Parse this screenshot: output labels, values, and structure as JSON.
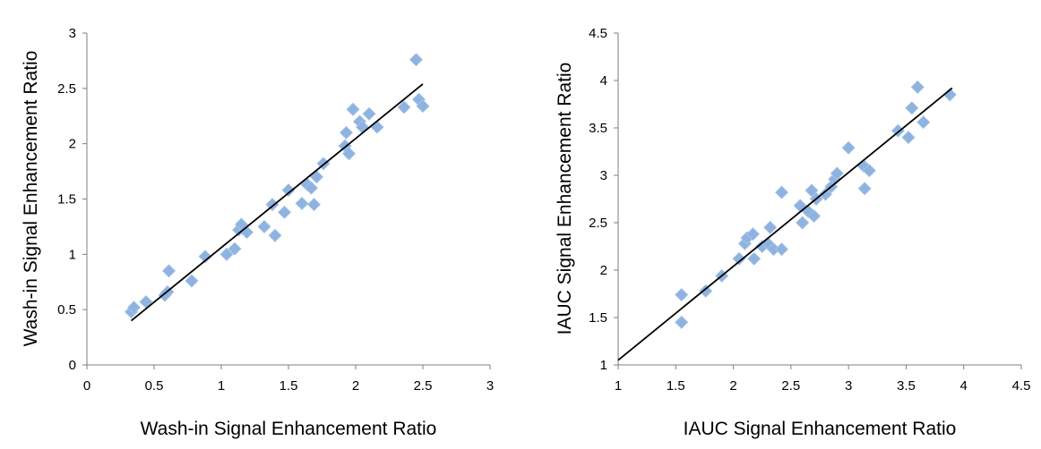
{
  "chart_data": [
    {
      "type": "scatter",
      "title": "",
      "xlabel": "Wash-in Signal Enhancement Ratio",
      "ylabel": "Wash-in Signal Enhancement Ratio",
      "xlim": [
        0,
        3
      ],
      "ylim": [
        0,
        3
      ],
      "xticks": [
        "0",
        "0.5",
        "1",
        "1.5",
        "2",
        "2.5",
        "3"
      ],
      "yticks": [
        "0",
        "0.5",
        "1",
        "1.5",
        "2",
        "2.5",
        "3"
      ],
      "grid": false,
      "legend": "none",
      "marker_color": "#8fb3e0",
      "line_color": "#000000",
      "trendline": [
        [
          0.33,
          0.4
        ],
        [
          2.5,
          2.54
        ]
      ],
      "points": [
        [
          0.33,
          0.48
        ],
        [
          0.35,
          0.52
        ],
        [
          0.44,
          0.57
        ],
        [
          0.58,
          0.63
        ],
        [
          0.6,
          0.66
        ],
        [
          0.61,
          0.85
        ],
        [
          0.78,
          0.76
        ],
        [
          0.88,
          0.98
        ],
        [
          1.04,
          1.0
        ],
        [
          1.1,
          1.05
        ],
        [
          1.13,
          1.22
        ],
        [
          1.15,
          1.27
        ],
        [
          1.19,
          1.2
        ],
        [
          1.32,
          1.25
        ],
        [
          1.38,
          1.45
        ],
        [
          1.4,
          1.17
        ],
        [
          1.47,
          1.38
        ],
        [
          1.5,
          1.58
        ],
        [
          1.6,
          1.46
        ],
        [
          1.64,
          1.63
        ],
        [
          1.67,
          1.6
        ],
        [
          1.69,
          1.45
        ],
        [
          1.71,
          1.7
        ],
        [
          1.76,
          1.82
        ],
        [
          1.92,
          1.98
        ],
        [
          1.93,
          2.1
        ],
        [
          1.95,
          1.91
        ],
        [
          1.98,
          2.31
        ],
        [
          2.03,
          2.2
        ],
        [
          2.05,
          2.15
        ],
        [
          2.1,
          2.27
        ],
        [
          2.16,
          2.15
        ],
        [
          2.36,
          2.33
        ],
        [
          2.45,
          2.76
        ],
        [
          2.47,
          2.4
        ],
        [
          2.5,
          2.34
        ]
      ]
    },
    {
      "type": "scatter",
      "title": "",
      "xlabel": "IAUC Signal Enhancement Ratio",
      "ylabel": "IAUC Signal Enhancement Ratio",
      "xlim": [
        1,
        4.5
      ],
      "ylim": [
        1,
        4.5
      ],
      "xticks": [
        "1",
        "1.5",
        "2",
        "2.5",
        "3",
        "3.5",
        "4",
        "4.5"
      ],
      "yticks": [
        "1",
        "1.5",
        "2",
        "2.5",
        "3",
        "3.5",
        "4",
        "4.5"
      ],
      "grid": false,
      "legend": "none",
      "marker_color": "#8fb3e0",
      "line_color": "#000000",
      "trendline": [
        [
          1.0,
          1.05
        ],
        [
          3.9,
          3.92
        ]
      ],
      "points": [
        [
          1.55,
          1.74
        ],
        [
          1.55,
          1.45
        ],
        [
          1.76,
          1.78
        ],
        [
          1.9,
          1.94
        ],
        [
          2.05,
          2.12
        ],
        [
          2.1,
          2.28
        ],
        [
          2.12,
          2.34
        ],
        [
          2.17,
          2.38
        ],
        [
          2.18,
          2.12
        ],
        [
          2.25,
          2.25
        ],
        [
          2.3,
          2.28
        ],
        [
          2.32,
          2.45
        ],
        [
          2.35,
          2.22
        ],
        [
          2.42,
          2.22
        ],
        [
          2.42,
          2.82
        ],
        [
          2.58,
          2.68
        ],
        [
          2.6,
          2.5
        ],
        [
          2.65,
          2.62
        ],
        [
          2.68,
          2.84
        ],
        [
          2.7,
          2.57
        ],
        [
          2.72,
          2.75
        ],
        [
          2.8,
          2.8
        ],
        [
          2.85,
          2.88
        ],
        [
          2.88,
          2.96
        ],
        [
          2.9,
          3.02
        ],
        [
          3.0,
          3.29
        ],
        [
          3.13,
          3.1
        ],
        [
          3.14,
          2.86
        ],
        [
          3.18,
          3.05
        ],
        [
          3.43,
          3.47
        ],
        [
          3.52,
          3.4
        ],
        [
          3.55,
          3.71
        ],
        [
          3.6,
          3.93
        ],
        [
          3.65,
          3.56
        ],
        [
          3.88,
          3.85
        ]
      ]
    }
  ]
}
